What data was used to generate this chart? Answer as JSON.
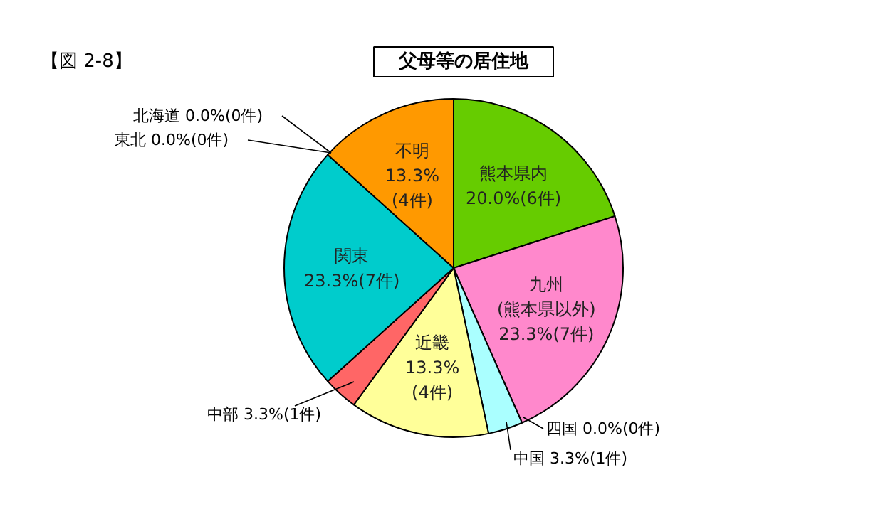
{
  "chart_data": {
    "type": "pie",
    "title": "父母等の居住地",
    "annotations": [
      "【図 2-8】"
    ],
    "categories": [
      "熊本県内",
      "九州\n(熊本県以外)",
      "四国",
      "中国",
      "近畿",
      "中部",
      "関東",
      "東北",
      "北海道",
      "不明"
    ],
    "values": [
      20.0,
      23.3,
      0.0,
      3.3,
      13.3,
      3.3,
      23.3,
      0.0,
      0.0,
      13.3
    ],
    "colors": [
      "#66cc00",
      "#ff88cc",
      "#99ccff",
      "#aaffff",
      "#ffff99",
      "#ff6666",
      "#00cccc",
      "#3366ff",
      "#cc99ff",
      "#ff9900"
    ],
    "value_labels": [
      "20.0%(6件)",
      "23.3%(7件)",
      "0.0%(0件)",
      "3.3%(1件)",
      "13.3%\n(4件)",
      "3.3%(1件)",
      "23.3%(7件)",
      "0.0%(0件)",
      "0.0%(0件)",
      "13.3%\n(4件)"
    ]
  }
}
